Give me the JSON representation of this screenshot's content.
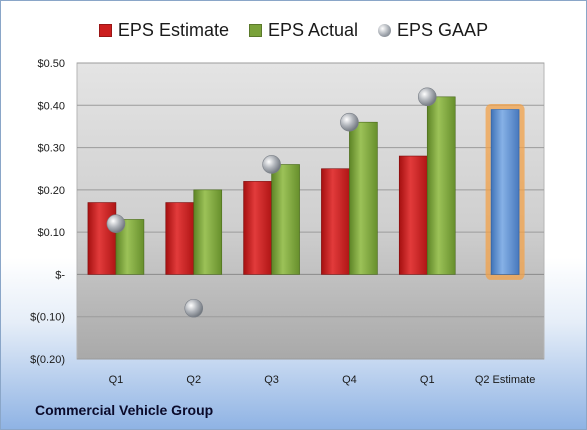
{
  "legend": [
    {
      "label": "EPS Estimate",
      "color": "#cc1e1e",
      "marker": "square"
    },
    {
      "label": "EPS Actual",
      "color": "#7aa23a",
      "marker": "square"
    },
    {
      "label": "EPS GAAP",
      "color": "#9aa0a8",
      "marker": "circle"
    }
  ],
  "company": "Commercial Vehicle Group",
  "chart_data": {
    "type": "bar",
    "categories": [
      "Q1",
      "Q2",
      "Q3",
      "Q4",
      "Q1",
      "Q2 Estimate"
    ],
    "series": [
      {
        "name": "EPS Estimate",
        "type": "bar",
        "color": "#cc1e1e",
        "values": [
          0.17,
          0.17,
          0.22,
          0.25,
          0.28,
          null
        ]
      },
      {
        "name": "EPS Actual",
        "type": "bar",
        "color": "#7aa23a",
        "values": [
          0.13,
          0.2,
          0.26,
          0.36,
          0.42,
          null
        ]
      },
      {
        "name": "EPS GAAP",
        "type": "scatter",
        "color": "#9aa0a8",
        "values": [
          0.12,
          -0.08,
          0.26,
          0.36,
          0.42,
          null
        ]
      },
      {
        "name": "Q2 Estimate",
        "type": "bar",
        "color": "#5b8fd0",
        "highlight": "#f2a24a",
        "values": [
          null,
          null,
          null,
          null,
          null,
          0.39
        ]
      }
    ],
    "y_ticks": [
      {
        "value": 0.5,
        "label": "$0.50"
      },
      {
        "value": 0.4,
        "label": "$0.40"
      },
      {
        "value": 0.3,
        "label": "$0.30"
      },
      {
        "value": 0.2,
        "label": "$0.20"
      },
      {
        "value": 0.1,
        "label": "$0.10"
      },
      {
        "value": 0.0,
        "label": "$-"
      },
      {
        "value": -0.1,
        "label": "$(0.10)"
      },
      {
        "value": -0.2,
        "label": "$(0.20)"
      }
    ],
    "ylim": [
      -0.2,
      0.5
    ],
    "grid": true,
    "legend_position": "top"
  }
}
